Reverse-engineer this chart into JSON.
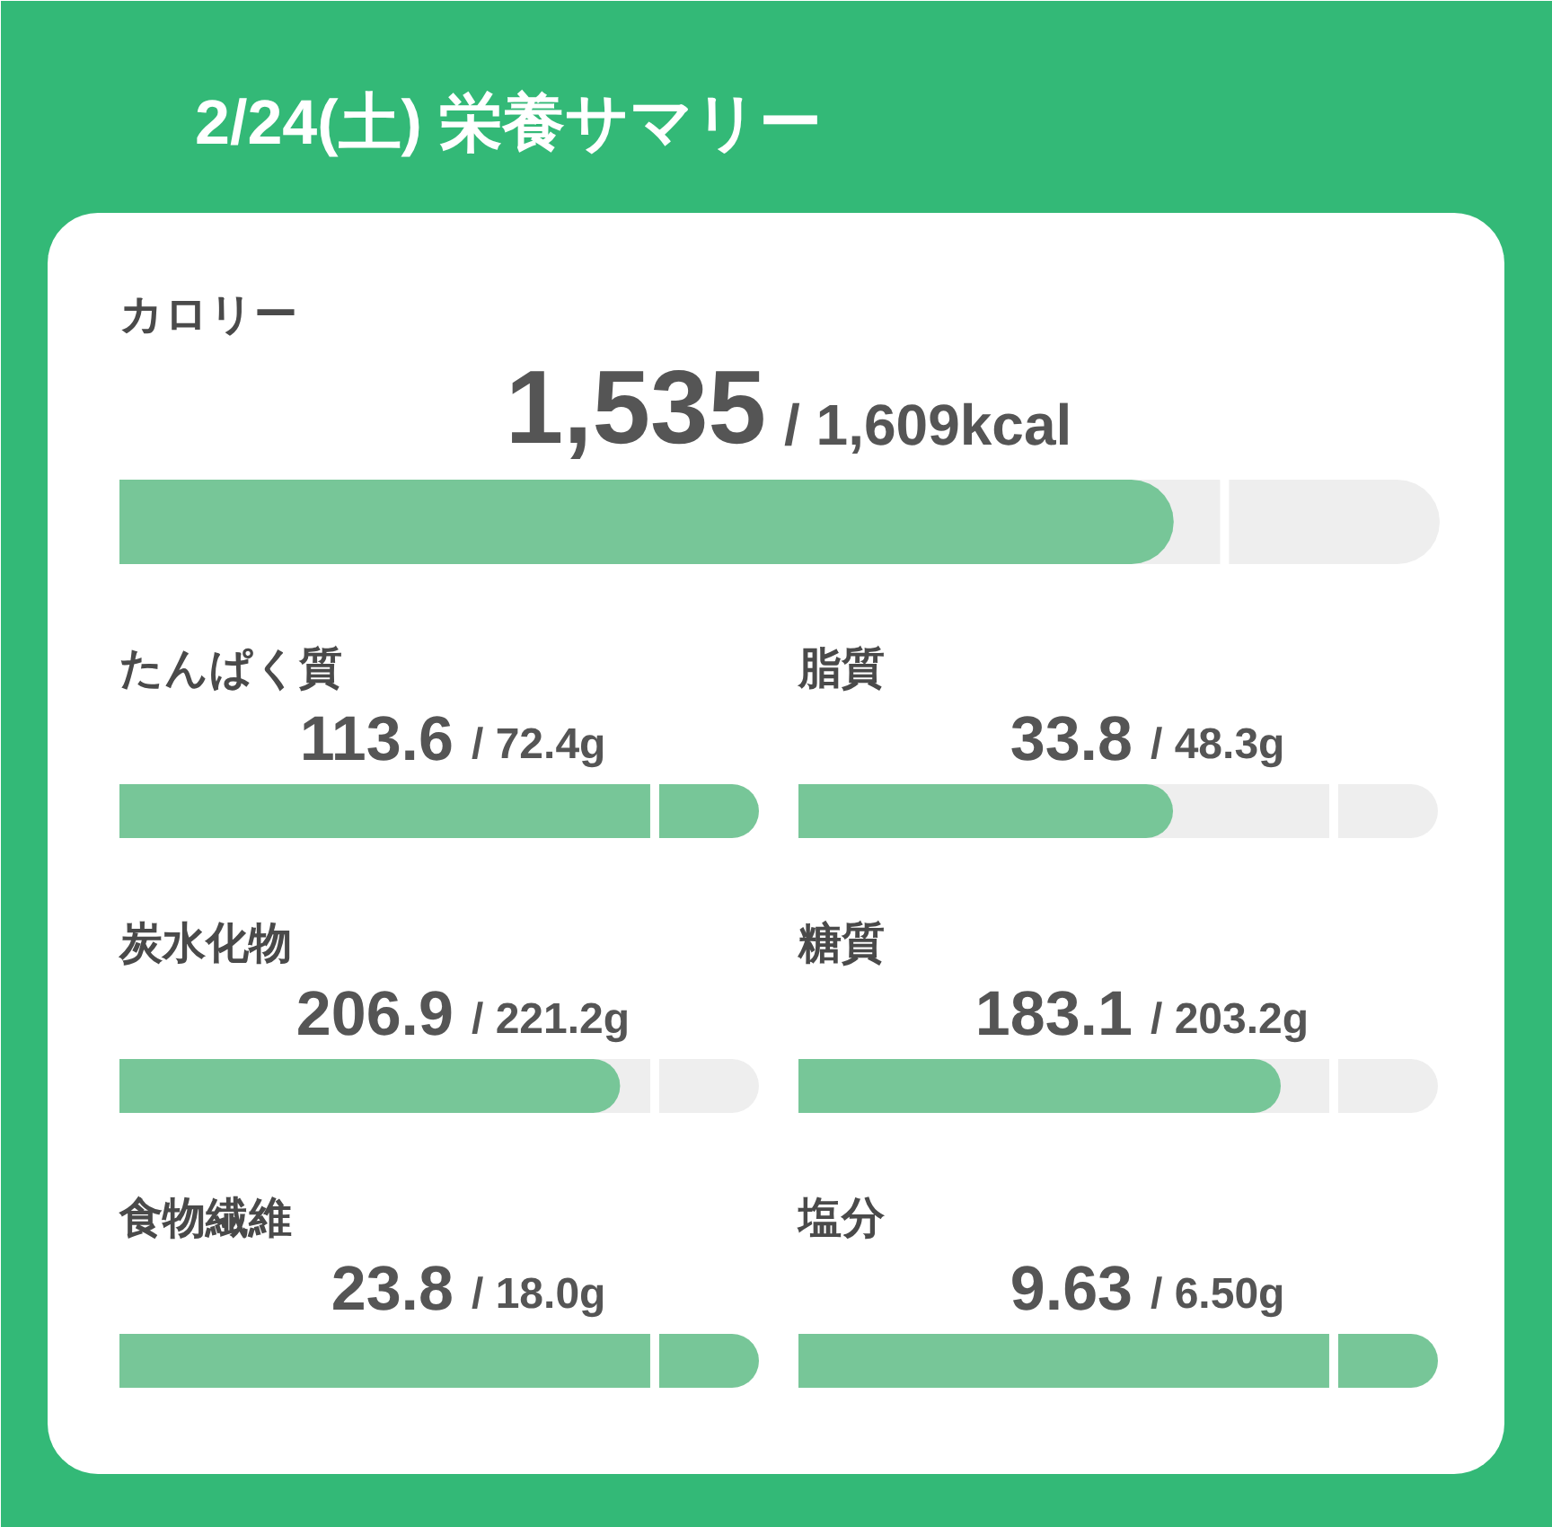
{
  "chart_data": {
    "type": "other",
    "title": "2/24(土) 栄養サマリー",
    "categories": [
      "カロリー",
      "たんぱく質",
      "脂質",
      "炭水化物",
      "糖質",
      "食物繊維",
      "塩分"
    ],
    "series": [
      {
        "color": "#77c698",
        "values": [
          1535,
          113.6,
          33.8,
          206.9,
          183.1,
          23.8,
          9.63
        ],
        "value_labels": [
          "1,535",
          "113.6",
          "33.8",
          "206.9",
          "183.1",
          "23.8",
          "9.63"
        ]
      },
      {
        "color": "#eeeeee",
        "values": [
          1609,
          72.4,
          48.3,
          221.2,
          203.2,
          18.0,
          6.5
        ],
        "value_labels": [
          "/ 1,609kcal",
          "/ 72.4g",
          "/ 48.3g",
          "/ 221.2g",
          "/ 203.2g",
          "/ 18.0g",
          "/ 6.50g"
        ]
      }
    ]
  }
}
